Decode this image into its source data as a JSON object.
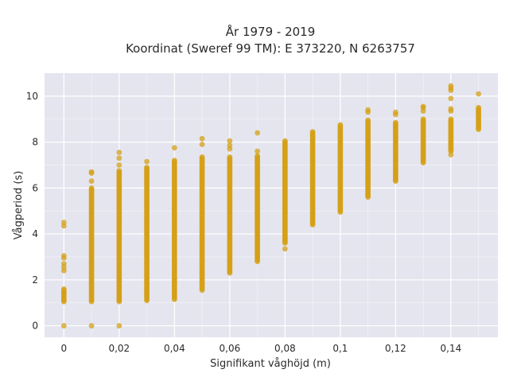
{
  "chart_data": {
    "type": "scatter",
    "title_lines": [
      "År 1979 - 2019",
      "Koordinat (Sweref 99 TM): E 373220, N 6263757"
    ],
    "xlabel": "Signifikant våghöjd (m)",
    "ylabel": "Vågperiod (s)",
    "xlim": [
      -0.007,
      0.157
    ],
    "ylim": [
      -0.5,
      11
    ],
    "x_ticks": [
      0,
      0.02,
      0.04,
      0.06,
      0.08,
      0.1,
      0.12,
      0.14
    ],
    "x_tick_labels": [
      "0",
      "0,02",
      "0,04",
      "0,06",
      "0,08",
      "0,1",
      "0,12",
      "0,14"
    ],
    "y_ticks": [
      0,
      2,
      4,
      6,
      8,
      10
    ],
    "y_tick_labels": [
      "0",
      "2",
      "4",
      "6",
      "8",
      "10"
    ],
    "grid": true,
    "colors": {
      "marker": "#D4A017",
      "plot_bg": "#E5E5EF",
      "grid": "#FFFFFF"
    },
    "series": [
      {
        "columns": [
          {
            "x": 0.0,
            "min": 1.05,
            "max": 1.6,
            "outliers": [
              0,
              2.4,
              2.55,
              2.7,
              2.95,
              3.05,
              4.35,
              4.5
            ]
          },
          {
            "x": 0.01,
            "min": 1.05,
            "max": 6.0,
            "outliers": [
              0,
              6.3,
              6.65,
              6.7
            ]
          },
          {
            "x": 0.02,
            "min": 1.05,
            "max": 6.75,
            "outliers": [
              0,
              7.0,
              7.3,
              7.55
            ]
          },
          {
            "x": 0.03,
            "min": 1.1,
            "max": 6.9,
            "outliers": [
              7.15
            ]
          },
          {
            "x": 0.04,
            "min": 1.15,
            "max": 7.2,
            "outliers": [
              7.75
            ]
          },
          {
            "x": 0.05,
            "min": 1.55,
            "max": 7.35,
            "outliers": [
              7.9,
              8.15
            ]
          },
          {
            "x": 0.06,
            "min": 2.3,
            "max": 7.35,
            "outliers": [
              7.7,
              7.85,
              8.05
            ]
          },
          {
            "x": 0.07,
            "min": 2.8,
            "max": 7.4,
            "outliers": [
              7.6,
              8.4
            ]
          },
          {
            "x": 0.08,
            "min": 3.6,
            "max": 8.05,
            "outliers": [
              3.35
            ]
          },
          {
            "x": 0.09,
            "min": 4.4,
            "max": 8.45,
            "outliers": []
          },
          {
            "x": 0.1,
            "min": 4.95,
            "max": 8.75,
            "outliers": []
          },
          {
            "x": 0.11,
            "min": 5.6,
            "max": 8.95,
            "outliers": [
              9.3,
              9.4
            ]
          },
          {
            "x": 0.12,
            "min": 6.3,
            "max": 8.85,
            "outliers": [
              9.2,
              9.3
            ]
          },
          {
            "x": 0.13,
            "min": 7.1,
            "max": 9.0,
            "outliers": [
              9.35,
              9.5,
              9.55
            ]
          },
          {
            "x": 0.14,
            "min": 7.6,
            "max": 9.0,
            "outliers": [
              7.45,
              9.35,
              9.45,
              9.9,
              10.25,
              10.35,
              10.45
            ]
          },
          {
            "x": 0.15,
            "min": 8.55,
            "max": 9.5,
            "outliers": [
              10.1
            ]
          }
        ]
      }
    ]
  }
}
